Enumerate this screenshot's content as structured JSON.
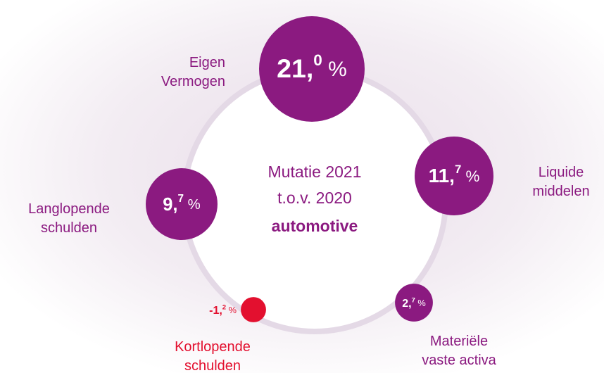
{
  "chart_data": {
    "type": "bubble",
    "center_text": [
      "Mutatie 2021",
      "t.o.v. 2020",
      "automotive"
    ],
    "categories": [
      "Eigen Vermogen",
      "Liquide middelen",
      "Materiële vaste activa",
      "Kortlopende schulden",
      "Langlopende schulden"
    ],
    "values": [
      21.0,
      11.7,
      2.7,
      -1.2,
      9.7
    ],
    "value_labels": [
      "21,0 %",
      "11,7 %",
      "2,7 %",
      "-1,2 %",
      "9,7 %"
    ],
    "colors": [
      "#8b1a80",
      "#8b1a80",
      "#8b1a80",
      "#e3102f",
      "#8b1a80"
    ]
  }
}
